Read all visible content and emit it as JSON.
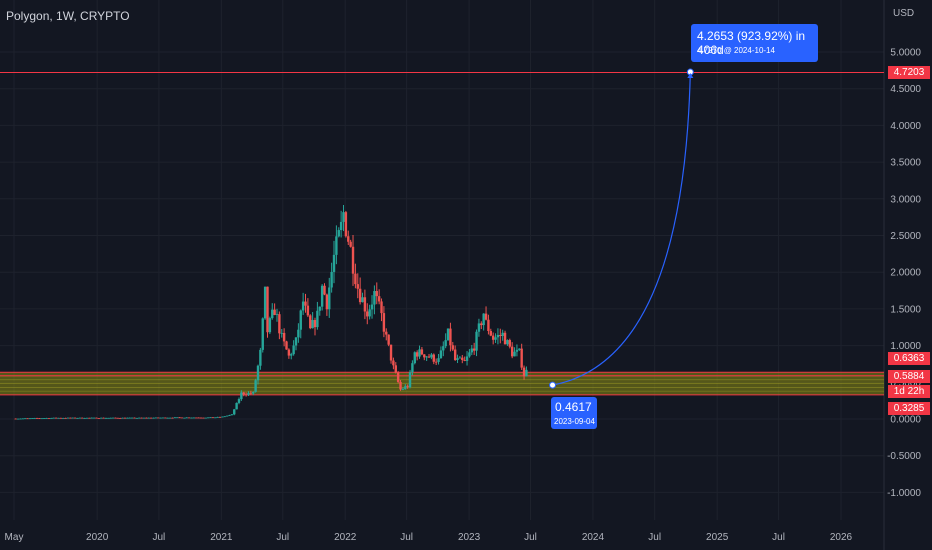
{
  "header": {
    "title": "Polygon, 1W, CRYPTO",
    "currency": "USD"
  },
  "price_badges": [
    {
      "label": "4.7203",
      "color": "#f23645"
    },
    {
      "label": "0.6363",
      "color": "#f23645"
    },
    {
      "label": "0.5884",
      "color": "#f23645"
    },
    {
      "label": "1d 22h",
      "color": "#f23645"
    },
    {
      "label": "0.3285",
      "color": "#f23645"
    }
  ],
  "annotations": {
    "target_main": "4.2653 (923.92%) in 406d",
    "target_sub": "4.7270 @ 2024-10-14",
    "start_main": "0.4617",
    "start_sub": "2023-09-04"
  },
  "colors": {
    "up": "#26a69a",
    "down": "#ef5350",
    "projection": "#2962ff",
    "zone": "#8a8a12",
    "level": "#f23645"
  },
  "chart_data": {
    "type": "candlestick",
    "title": "Polygon, 1W, CRYPTO",
    "xlabel": "",
    "ylabel": "USD",
    "ylim": [
      -1.0,
      5.0
    ],
    "yticks": [
      "5.0000",
      "4.5000",
      "4.0000",
      "3.5000",
      "3.0000",
      "2.5000",
      "2.0000",
      "1.5000",
      "1.0000",
      "0.5000",
      "0.0000",
      "-0.5000",
      "-1.0000"
    ],
    "xticks": [
      "May",
      "2020",
      "Jul",
      "2021",
      "Jul",
      "2022",
      "Jul",
      "2023",
      "Jul",
      "2024",
      "Jul",
      "2025",
      "Jul",
      "2026"
    ],
    "x_date_range": [
      "2019-05-01",
      "2026-04-20"
    ],
    "close_series": [
      [
        "2019-05-06",
        0.005
      ],
      [
        "2019-09-02",
        0.015
      ],
      [
        "2020-01-06",
        0.015
      ],
      [
        "2020-05-04",
        0.015
      ],
      [
        "2020-09-07",
        0.02
      ],
      [
        "2020-12-07",
        0.02
      ],
      [
        "2021-01-04",
        0.03
      ],
      [
        "2021-02-01",
        0.06
      ],
      [
        "2021-03-01",
        0.35
      ],
      [
        "2021-04-05",
        0.35
      ],
      [
        "2021-04-26",
        0.9
      ],
      [
        "2021-05-10",
        1.7
      ],
      [
        "2021-05-17",
        1.2
      ],
      [
        "2021-06-07",
        1.5
      ],
      [
        "2021-06-28",
        1.1
      ],
      [
        "2021-07-19",
        0.85
      ],
      [
        "2021-08-09",
        1.05
      ],
      [
        "2021-08-30",
        1.6
      ],
      [
        "2021-09-20",
        1.2
      ],
      [
        "2021-10-11",
        1.4
      ],
      [
        "2021-10-25",
        1.8
      ],
      [
        "2021-11-08",
        1.6
      ],
      [
        "2021-11-29",
        2.2
      ],
      [
        "2021-12-20",
        2.6
      ],
      [
        "2021-12-27",
        2.8
      ],
      [
        "2022-01-17",
        2.3
      ],
      [
        "2022-02-07",
        1.8
      ],
      [
        "2022-03-07",
        1.45
      ],
      [
        "2022-03-28",
        1.7
      ],
      [
        "2022-04-18",
        1.4
      ],
      [
        "2022-05-02",
        1.1
      ],
      [
        "2022-05-23",
        0.7
      ],
      [
        "2022-06-13",
        0.4
      ],
      [
        "2022-07-04",
        0.45
      ],
      [
        "2022-07-25",
        0.9
      ],
      [
        "2022-08-15",
        0.9
      ],
      [
        "2022-09-05",
        0.85
      ],
      [
        "2022-10-03",
        0.8
      ],
      [
        "2022-10-31",
        1.15
      ],
      [
        "2022-11-21",
        0.8
      ],
      [
        "2022-12-19",
        0.77
      ],
      [
        "2023-01-16",
        1.0
      ],
      [
        "2023-02-13",
        1.45
      ],
      [
        "2023-02-20",
        1.3
      ],
      [
        "2023-03-13",
        1.1
      ],
      [
        "2023-04-10",
        1.15
      ],
      [
        "2023-05-08",
        0.9
      ],
      [
        "2023-05-29",
        0.9
      ],
      [
        "2023-06-12",
        0.6
      ],
      [
        "2023-06-19",
        0.65
      ]
    ],
    "horizontal_levels": [
      4.7203,
      0.6363,
      0.5884,
      0.3285
    ],
    "support_zone": [
      0.3285,
      0.6363
    ],
    "projection": {
      "from_date": "2023-09-04",
      "from_value": 0.4617,
      "to_date": "2024-10-14",
      "to_value": 4.727,
      "change": "4.2653 (923.92%)",
      "bars": "406d"
    }
  }
}
